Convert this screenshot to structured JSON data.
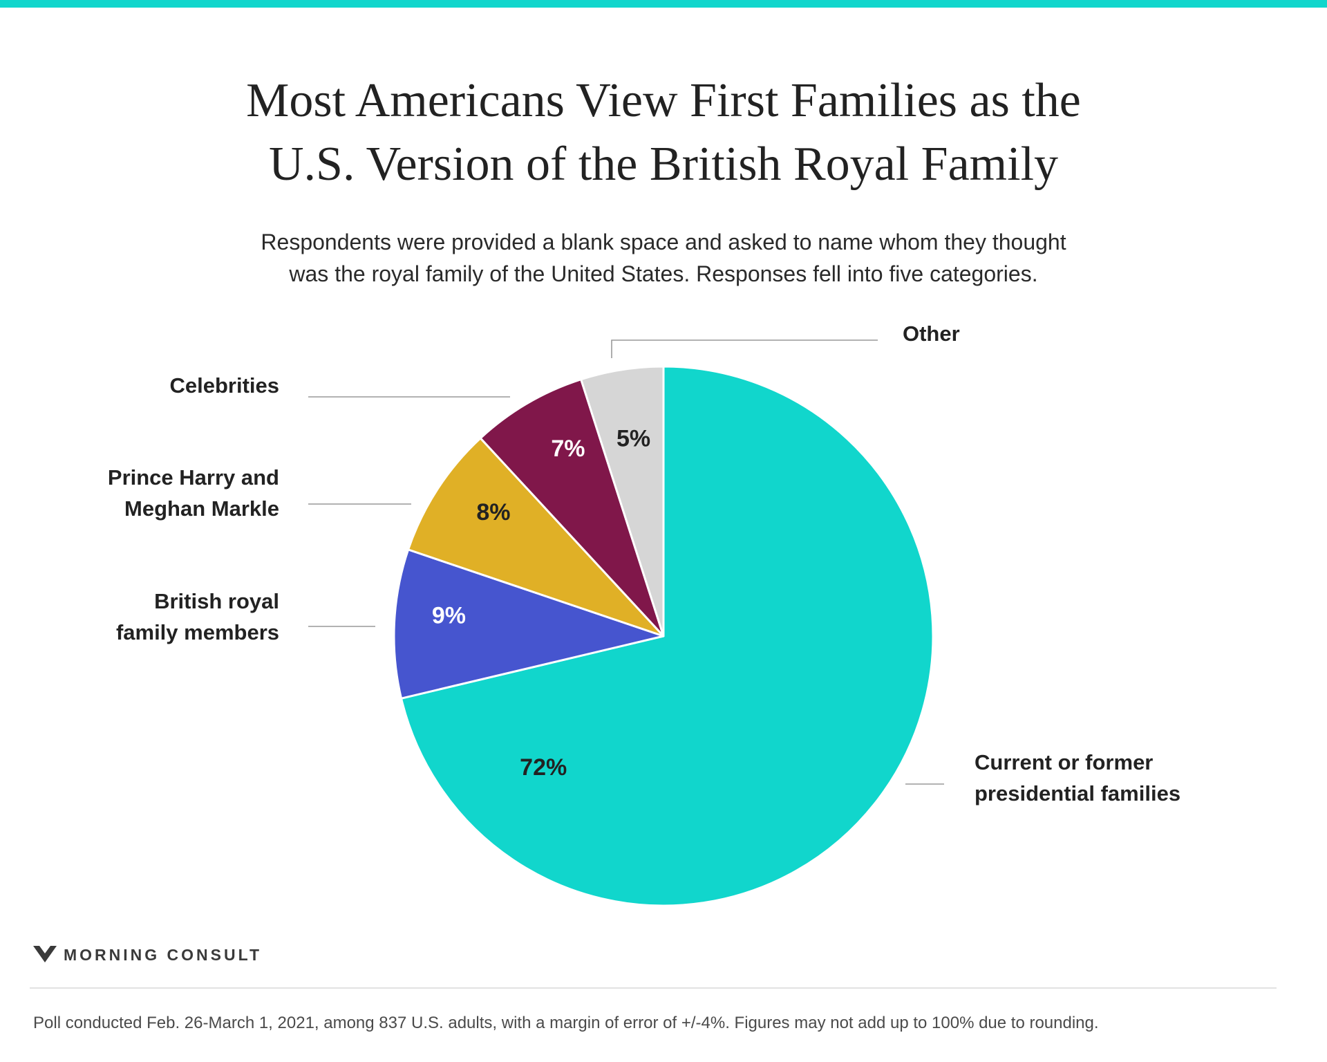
{
  "header": {
    "title_line1": "Most Americans View First Families as the",
    "title_line2": "U.S. Version of the British Royal Family",
    "subtitle_line1": "Respondents were provided a blank space and asked to name whom they thought",
    "subtitle_line2": "was the royal family of the United States. Responses fell into five categories."
  },
  "colors": {
    "accent": "#11d6cc",
    "presidential": "#11d6cc",
    "british_royals": "#4655cf",
    "harry_meghan": "#e0b026",
    "celebrities": "#80174a",
    "other": "#d6d6d6",
    "leader_line": "#999999"
  },
  "chart_data": {
    "type": "pie",
    "title": "Most Americans View First Families as the U.S. Version of the British Royal Family",
    "start": "12 o'clock",
    "direction": "clockwise",
    "slices": [
      {
        "key": "presidential",
        "label_lines": [
          "Current or former",
          "presidential families"
        ],
        "value": 72,
        "display": "72%",
        "color": "#11d6cc",
        "pct_color": "#222222"
      },
      {
        "key": "british_royals",
        "label_lines": [
          "British royal",
          "family members"
        ],
        "value": 9,
        "display": "9%",
        "color": "#4655cf",
        "pct_color": "#ffffff"
      },
      {
        "key": "harry_meghan",
        "label_lines": [
          "Prince Harry and",
          "Meghan Markle"
        ],
        "value": 8,
        "display": "8%",
        "color": "#e0b026",
        "pct_color": "#222222"
      },
      {
        "key": "celebrities",
        "label_lines": [
          "Celebrities"
        ],
        "value": 7,
        "display": "7%",
        "color": "#80174a",
        "pct_color": "#ffffff"
      },
      {
        "key": "other",
        "label_lines": [
          "Other"
        ],
        "value": 5,
        "display": "5%",
        "color": "#d6d6d6",
        "pct_color": "#222222"
      }
    ]
  },
  "brand": {
    "name": "MORNING CONSULT"
  },
  "footnote": "Poll conducted Feb. 26-March 1, 2021, among 837 U.S. adults, with a margin of error of +/-4%. Figures may not add up to 100% due to rounding."
}
